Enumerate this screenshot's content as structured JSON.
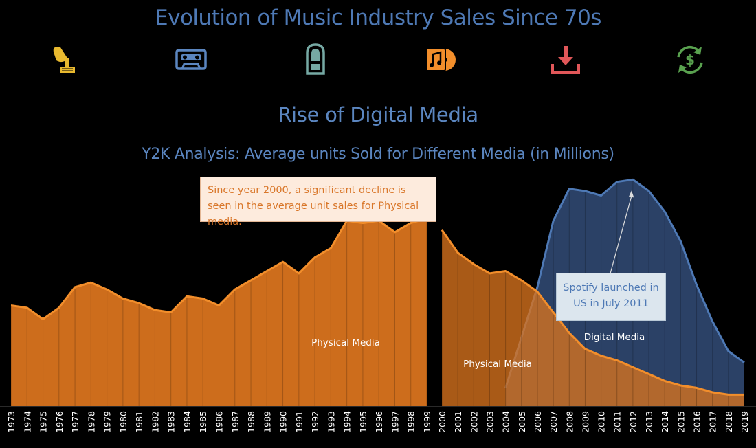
{
  "title": "Evolution of Music Industry Sales Since 70s",
  "icons": [
    {
      "name": "gramophone-icon",
      "color": "#e8b92f"
    },
    {
      "name": "cassette-icon",
      "color": "#5b86c0"
    },
    {
      "name": "jukebox-icon",
      "color": "#76a9a4"
    },
    {
      "name": "cd-music-icon",
      "color": "#f28e2b"
    },
    {
      "name": "download-icon",
      "color": "#e15759"
    },
    {
      "name": "dollar-refresh-icon",
      "color": "#59a14f"
    }
  ],
  "section_title": "Rise of Digital Media",
  "chart_title": "Y2K Analysis: Average units Sold for Different Media (in Millions)",
  "annotations": {
    "physical_note": "Since year 2000, a significant decline is seen in the average unit sales for Physical media.",
    "spotify_note": "Spotify launched in US in July 2011"
  },
  "chart_data": {
    "type": "area",
    "title": "Y2K Analysis: Average units Sold for Different Media (in Millions)",
    "x": [
      "1973",
      "1974",
      "1975",
      "1976",
      "1977",
      "1978",
      "1979",
      "1980",
      "1981",
      "1982",
      "1983",
      "1984",
      "1985",
      "1986",
      "1987",
      "1988",
      "1989",
      "1990",
      "1991",
      "1992",
      "1993",
      "1994",
      "1995",
      "1996",
      "1997",
      "1998",
      "1999",
      "2000",
      "2001",
      "2002",
      "2003",
      "2004",
      "2005",
      "2006",
      "2007",
      "2008",
      "2009",
      "2010",
      "2011",
      "2012",
      "2013",
      "2014",
      "2015",
      "2016",
      "2017",
      "2018",
      "2019"
    ],
    "ylim": [
      0,
      100
    ],
    "grid": false,
    "colors": {
      "physical": "#d8731e",
      "physical_line": "#f28e2b",
      "digital": "#2b4166",
      "digital_line": "#4e79b5"
    },
    "panels": [
      {
        "years": [
          "1973",
          "1999"
        ],
        "series": [
          {
            "name": "Physical Media",
            "x": [
              "1973",
              "1974",
              "1975",
              "1976",
              "1977",
              "1978",
              "1979",
              "1980",
              "1981",
              "1982",
              "1983",
              "1984",
              "1985",
              "1986",
              "1987",
              "1988",
              "1989",
              "1990",
              "1991",
              "1992",
              "1993",
              "1994",
              "1995",
              "1996",
              "1997",
              "1998",
              "1999"
            ],
            "values": [
              44,
              43,
              38,
              43,
              52,
              54,
              51,
              47,
              45,
              42,
              41,
              48,
              47,
              44,
              51,
              55,
              59,
              63,
              58,
              65,
              69,
              81,
              80,
              81,
              76,
              80,
              82
            ]
          }
        ]
      },
      {
        "years": [
          "2000",
          "2019"
        ],
        "series": [
          {
            "name": "Physical Media",
            "x": [
              "2000",
              "2001",
              "2002",
              "2003",
              "2004",
              "2005",
              "2006",
              "2007",
              "2008",
              "2009",
              "2010",
              "2011",
              "2012",
              "2013",
              "2014",
              "2015",
              "2016",
              "2017",
              "2018",
              "2019"
            ],
            "values": [
              77,
              67,
              62,
              58,
              59,
              55,
              50,
              41,
              32,
              25,
              22,
              20,
              17,
              14,
              11,
              9,
              8,
              6,
              5,
              5
            ]
          },
          {
            "name": "Digital Media",
            "x": [
              "2004",
              "2005",
              "2006",
              "2007",
              "2008",
              "2009",
              "2010",
              "2011",
              "2012",
              "2013",
              "2014",
              "2015",
              "2016",
              "2017",
              "2018",
              "2019"
            ],
            "values": [
              8,
              30,
              52,
              81,
              95,
              94,
              92,
              98,
              99,
              94,
              85,
              72,
              53,
              37,
              24,
              19
            ]
          }
        ]
      }
    ]
  }
}
